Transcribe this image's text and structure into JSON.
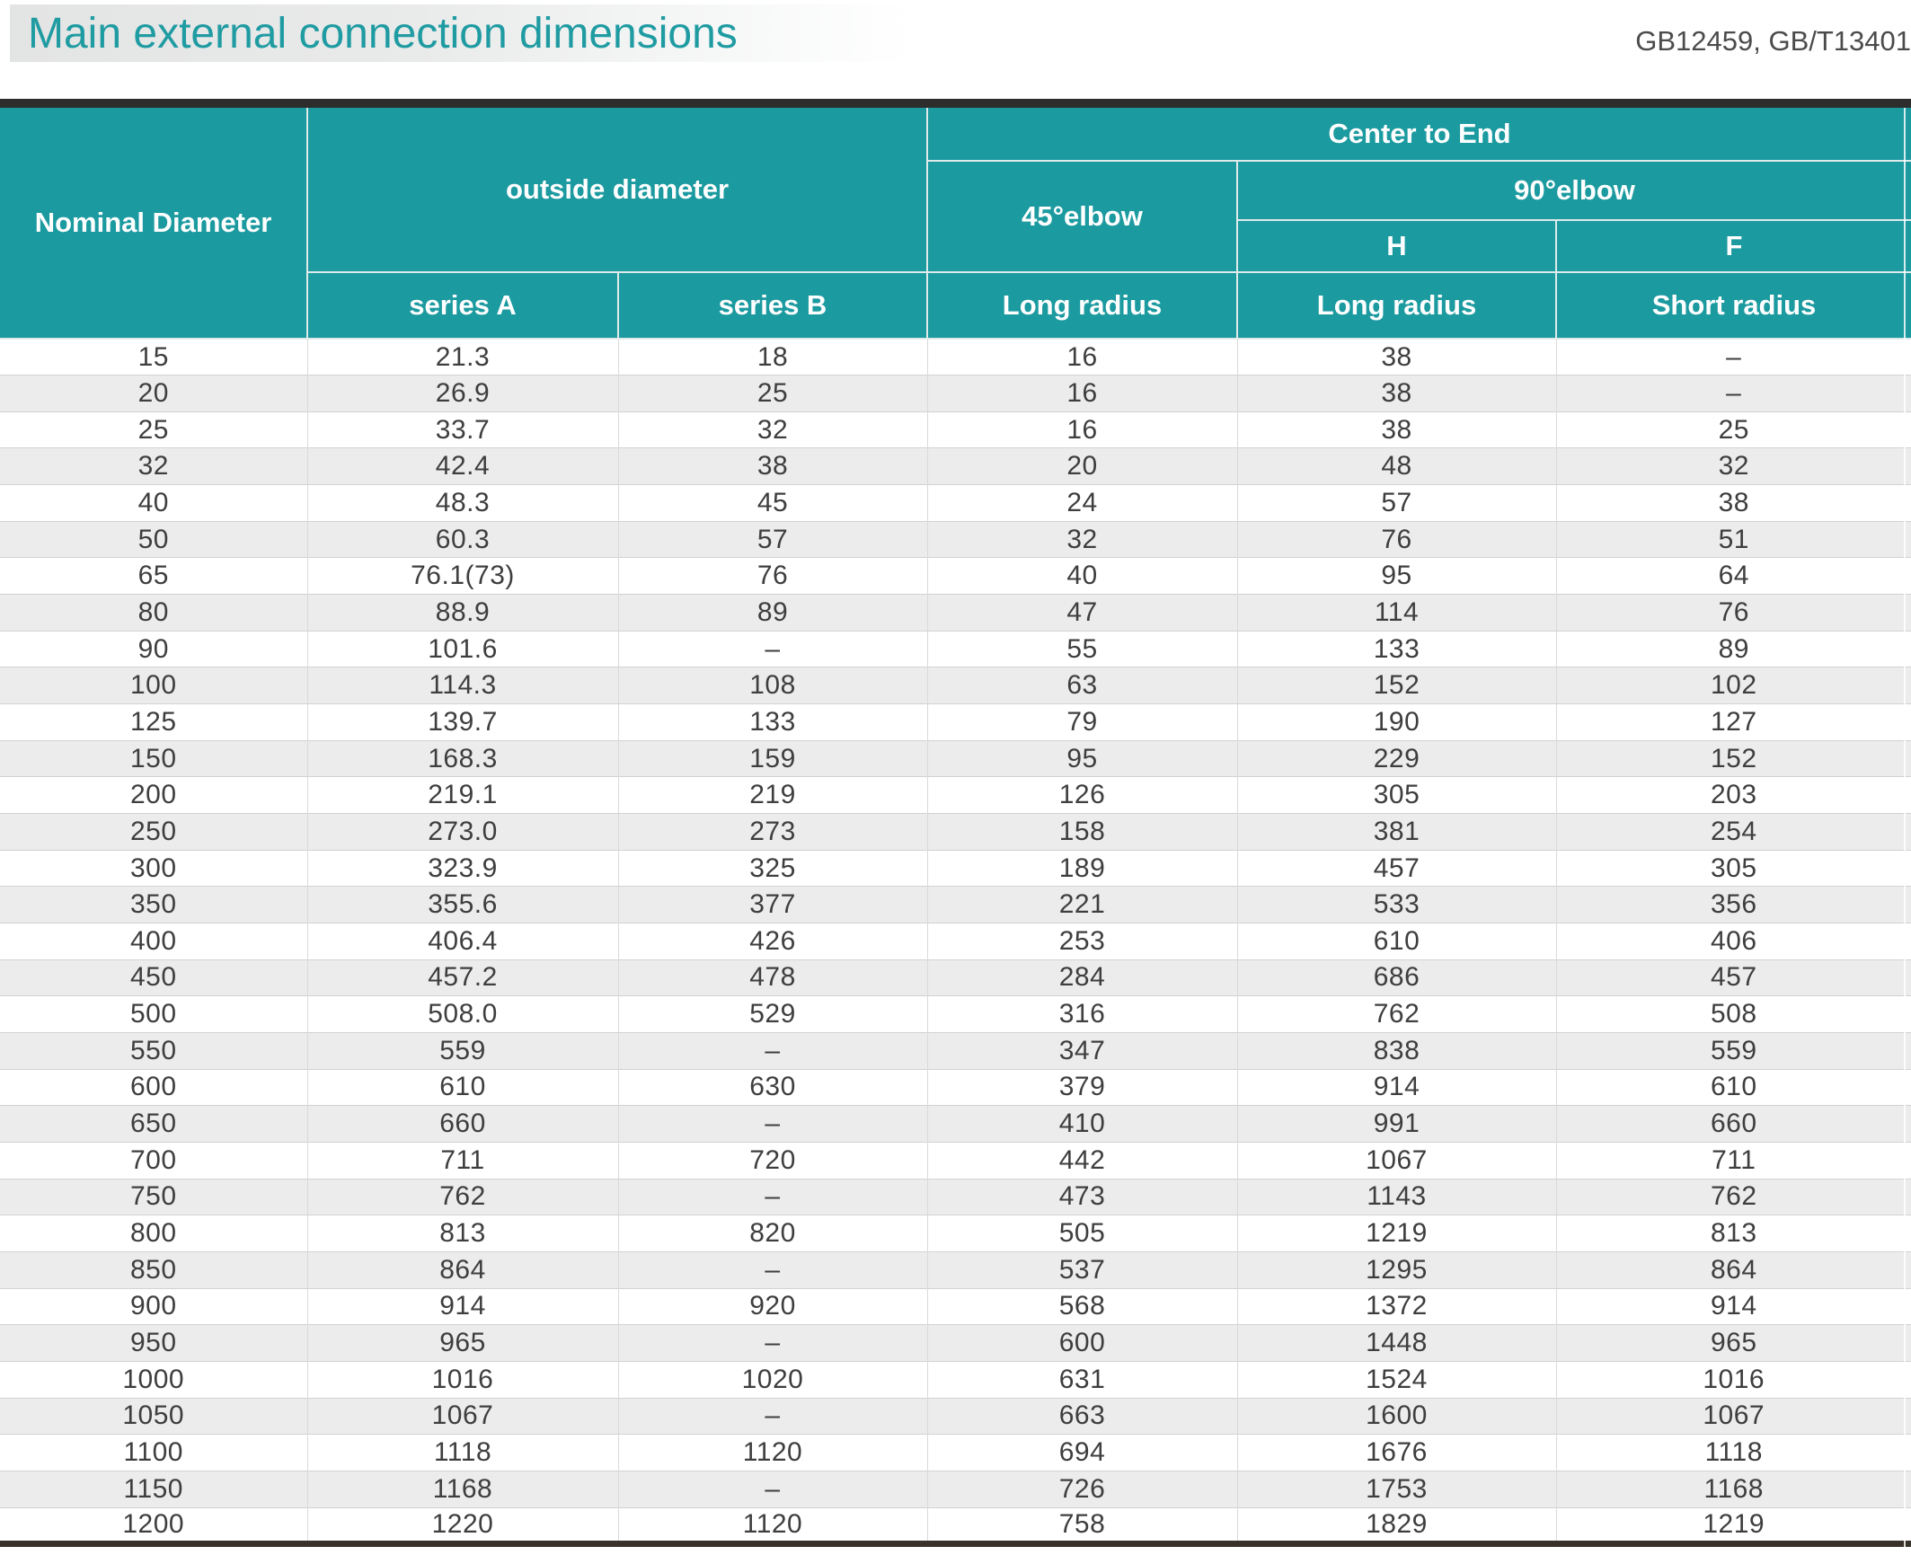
{
  "page": {
    "title": "Main external connection dimensions",
    "standards": "GB12459, GB/T13401"
  },
  "colors": {
    "accent_teal": "#1B9AA0",
    "title_teal": "#1F9BA2",
    "row_stripe": "#ECECEC",
    "top_bar": "#2D2D2D",
    "bottom_bar": "#39322B"
  },
  "table": {
    "columns": {
      "nominal_diameter": "Nominal Diameter",
      "outside_diameter": "outside diameter",
      "center_to_end": "Center to End",
      "elbow45": "45°elbow",
      "elbow90": "90°elbow",
      "h": "H",
      "f": "F",
      "series_a": "series A",
      "series_b": "series B",
      "long_radius_45": "Long radius",
      "long_radius_h": "Long radius",
      "short_radius_f": "Short radius"
    },
    "empty_value": "–",
    "rows": [
      [
        "15",
        "21.3",
        "18",
        "16",
        "38",
        "–"
      ],
      [
        "20",
        "26.9",
        "25",
        "16",
        "38",
        "–"
      ],
      [
        "25",
        "33.7",
        "32",
        "16",
        "38",
        "25"
      ],
      [
        "32",
        "42.4",
        "38",
        "20",
        "48",
        "32"
      ],
      [
        "40",
        "48.3",
        "45",
        "24",
        "57",
        "38"
      ],
      [
        "50",
        "60.3",
        "57",
        "32",
        "76",
        "51"
      ],
      [
        "65",
        "76.1(73)",
        "76",
        "40",
        "95",
        "64"
      ],
      [
        "80",
        "88.9",
        "89",
        "47",
        "114",
        "76"
      ],
      [
        "90",
        "101.6",
        "–",
        "55",
        "133",
        "89"
      ],
      [
        "100",
        "114.3",
        "108",
        "63",
        "152",
        "102"
      ],
      [
        "125",
        "139.7",
        "133",
        "79",
        "190",
        "127"
      ],
      [
        "150",
        "168.3",
        "159",
        "95",
        "229",
        "152"
      ],
      [
        "200",
        "219.1",
        "219",
        "126",
        "305",
        "203"
      ],
      [
        "250",
        "273.0",
        "273",
        "158",
        "381",
        "254"
      ],
      [
        "300",
        "323.9",
        "325",
        "189",
        "457",
        "305"
      ],
      [
        "350",
        "355.6",
        "377",
        "221",
        "533",
        "356"
      ],
      [
        "400",
        "406.4",
        "426",
        "253",
        "610",
        "406"
      ],
      [
        "450",
        "457.2",
        "478",
        "284",
        "686",
        "457"
      ],
      [
        "500",
        "508.0",
        "529",
        "316",
        "762",
        "508"
      ],
      [
        "550",
        "559",
        "–",
        "347",
        "838",
        "559"
      ],
      [
        "600",
        "610",
        "630",
        "379",
        "914",
        "610"
      ],
      [
        "650",
        "660",
        "–",
        "410",
        "991",
        "660"
      ],
      [
        "700",
        "711",
        "720",
        "442",
        "1067",
        "711"
      ],
      [
        "750",
        "762",
        "–",
        "473",
        "1143",
        "762"
      ],
      [
        "800",
        "813",
        "820",
        "505",
        "1219",
        "813"
      ],
      [
        "850",
        "864",
        "–",
        "537",
        "1295",
        "864"
      ],
      [
        "900",
        "914",
        "920",
        "568",
        "1372",
        "914"
      ],
      [
        "950",
        "965",
        "–",
        "600",
        "1448",
        "965"
      ],
      [
        "1000",
        "1016",
        "1020",
        "631",
        "1524",
        "1016"
      ],
      [
        "1050",
        "1067",
        "–",
        "663",
        "1600",
        "1067"
      ],
      [
        "1100",
        "1118",
        "1120",
        "694",
        "1676",
        "1118"
      ],
      [
        "1150",
        "1168",
        "–",
        "726",
        "1753",
        "1168"
      ],
      [
        "1200",
        "1220",
        "1120",
        "758",
        "1829",
        "1219"
      ]
    ]
  }
}
